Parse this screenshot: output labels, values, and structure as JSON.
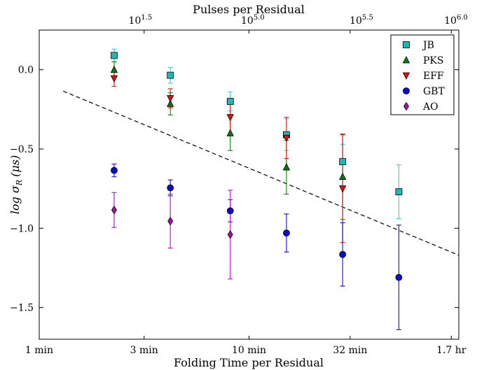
{
  "chart_data": {
    "type": "scatter",
    "title": "",
    "xlabel": "Folding Time per Residual",
    "ylabel": "log σ",
    "ylabel_sub": "R",
    "ylabel_unit": "(μs)",
    "x2label": "Pulses per Residual",
    "x_ticks": [
      "1 min",
      "3 min",
      "10 min",
      "32 min",
      "1.7 hr"
    ],
    "x2_ticks": [
      {
        "base": "10",
        "exp": "1.5"
      },
      {
        "base": "10",
        "exp": "5.0"
      },
      {
        "base": "10",
        "exp": "5.5"
      },
      {
        "base": "10",
        "exp": "6.0"
      }
    ],
    "y_ticks": [
      "0.0",
      "−0.5",
      "−1.0",
      "−1.5"
    ],
    "y_tick_values": [
      0.0,
      -0.5,
      -1.0,
      -1.5
    ],
    "ylim": [
      -1.7,
      0.25
    ],
    "xlim": [
      0,
      3.75
    ],
    "grid": false,
    "legend_position": "top-right",
    "trend_line": {
      "style": "dashed",
      "color": "#000000",
      "x": [
        0,
        3.75
      ],
      "y": [
        -0.135,
        -1.17
      ]
    },
    "series": [
      {
        "name": "JB",
        "marker": "square",
        "color": "#1fb7b7",
        "errcolor": "#3fd4d4",
        "x": [
          0.78,
          1.44,
          2.15,
          2.85,
          3.58,
          4.28
        ],
        "y": [
          0.09,
          -0.035,
          -0.2,
          -0.41,
          -0.58,
          -0.77
        ],
        "err": [
          0.04,
          0.05,
          0.06,
          0.1,
          0.11,
          0.17
        ]
      },
      {
        "name": "PKS",
        "marker": "triangle-up",
        "color": "#0a7a0a",
        "errcolor": "#1a8a1a",
        "x": [
          0.78,
          1.44,
          2.15,
          2.85,
          3.58
        ],
        "y": [
          0.0,
          -0.215,
          -0.4,
          -0.615,
          -0.675
        ],
        "err": [
          0.05,
          0.07,
          0.11,
          0.17,
          0.27
        ]
      },
      {
        "name": "EFF",
        "marker": "triangle-down",
        "color": "#dd1111",
        "errcolor": "#ee2222",
        "x": [
          0.78,
          1.44,
          2.15,
          2.85,
          3.58
        ],
        "y": [
          -0.055,
          -0.18,
          -0.3,
          -0.43,
          -0.75
        ],
        "err": [
          0.05,
          0.06,
          0.11,
          0.13,
          0.34
        ]
      },
      {
        "name": "GBT",
        "marker": "circle",
        "color": "#0b0bd6",
        "errcolor": "#2222dd",
        "x": [
          0.78,
          1.44,
          2.15,
          2.85,
          3.58,
          4.28
        ],
        "y": [
          -0.635,
          -0.745,
          -0.89,
          -1.03,
          -1.165,
          -1.31
        ],
        "err": [
          0.04,
          0.05,
          0.07,
          0.12,
          0.2,
          0.33
        ]
      },
      {
        "name": "AO",
        "marker": "diamond",
        "color": "#aa11aa",
        "errcolor": "#bb22bb",
        "x": [
          0.78,
          1.44,
          2.15
        ],
        "y": [
          -0.885,
          -0.955,
          -1.04
        ],
        "err": [
          0.11,
          0.17,
          0.28
        ]
      }
    ]
  }
}
